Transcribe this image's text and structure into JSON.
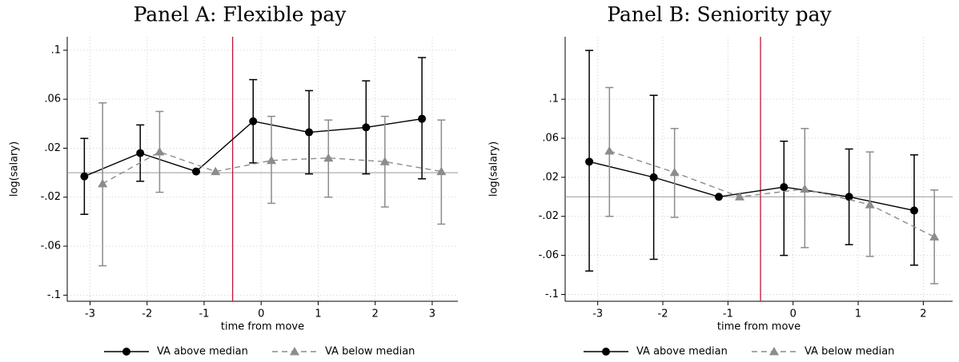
{
  "chart_data": [
    {
      "type": "line",
      "title": "Panel A: Flexible pay",
      "x_label": "time from move",
      "y_label": "log(salary)",
      "xlim": [
        -3.4,
        3.45
      ],
      "ylim": [
        -0.105,
        0.111
      ],
      "xticks": [
        -3,
        -2,
        -1,
        0,
        1,
        2,
        3
      ],
      "yticks": [
        {
          "value": -0.1,
          "label": "-.1"
        },
        {
          "value": -0.06,
          "label": "-.06"
        },
        {
          "value": -0.02,
          "label": "-.02"
        },
        {
          "value": 0.02,
          "label": ".02"
        },
        {
          "value": 0.06,
          "label": ".06"
        },
        {
          "value": 0.1,
          "label": ".1"
        }
      ],
      "grid": true,
      "vline": -0.5,
      "vline_color": "#c0143c",
      "hline": 0,
      "series": [
        {
          "name": "VA above median",
          "color": "#000000",
          "line_style": "solid",
          "marker": "circle",
          "x": [
            -3.1,
            -2.12,
            -1.14,
            -0.14,
            0.84,
            1.84,
            2.82
          ],
          "values": [
            -0.003,
            0.016,
            0.001,
            0.042,
            0.033,
            0.037,
            0.044
          ],
          "ci_low": [
            -0.034,
            -0.007,
            null,
            0.008,
            -0.001,
            -0.001,
            -0.005
          ],
          "ci_high": [
            0.028,
            0.039,
            null,
            0.076,
            0.067,
            0.075,
            0.094
          ]
        },
        {
          "name": "VA below median",
          "color": "#8c8c8c",
          "line_style": "dashed",
          "marker": "triangle",
          "x": [
            -2.78,
            -1.78,
            -0.8,
            0.18,
            1.18,
            2.17,
            3.16
          ],
          "values": [
            -0.009,
            0.017,
            0.001,
            0.01,
            0.012,
            0.009,
            0.001
          ],
          "ci_low": [
            -0.076,
            -0.016,
            null,
            -0.025,
            -0.02,
            -0.028,
            -0.042
          ],
          "ci_high": [
            0.057,
            0.05,
            null,
            0.046,
            0.043,
            0.046,
            0.043
          ]
        }
      ]
    },
    {
      "type": "line",
      "title": "Panel B: Seniority pay",
      "x_label": "time from move",
      "y_label": "log(salary)",
      "xlim": [
        -3.5,
        2.45
      ],
      "ylim": [
        -0.107,
        0.164
      ],
      "xticks": [
        -3,
        -2,
        -1,
        0,
        1,
        2
      ],
      "yticks": [
        {
          "value": -0.1,
          "label": "-.1"
        },
        {
          "value": -0.06,
          "label": "-.06"
        },
        {
          "value": -0.02,
          "label": "-.02"
        },
        {
          "value": 0.02,
          "label": ".02"
        },
        {
          "value": 0.06,
          "label": ".06"
        },
        {
          "value": 0.1,
          "label": ".1"
        }
      ],
      "grid": true,
      "vline": -0.5,
      "vline_color": "#c0143c",
      "hline": 0,
      "series": [
        {
          "name": "VA above median",
          "color": "#000000",
          "line_style": "solid",
          "marker": "circle",
          "x": [
            -3.13,
            -2.14,
            -1.14,
            -0.14,
            0.86,
            1.86
          ],
          "values": [
            0.036,
            0.02,
            0,
            0.01,
            0,
            -0.014
          ],
          "ci_low": [
            -0.076,
            -0.064,
            null,
            -0.06,
            -0.049,
            -0.07
          ],
          "ci_high": [
            0.15,
            0.104,
            null,
            0.057,
            0.049,
            0.043
          ]
        },
        {
          "name": "VA below median",
          "color": "#8c8c8c",
          "line_style": "dashed",
          "marker": "triangle",
          "x": [
            -2.82,
            -1.82,
            -0.82,
            0.18,
            1.18,
            2.17
          ],
          "values": [
            0.047,
            0.025,
            0,
            0.008,
            -0.008,
            -0.041
          ],
          "ci_low": [
            -0.02,
            -0.021,
            null,
            -0.052,
            -0.061,
            -0.089
          ],
          "ci_high": [
            0.112,
            0.07,
            null,
            0.07,
            0.046,
            0.007
          ]
        }
      ]
    }
  ]
}
